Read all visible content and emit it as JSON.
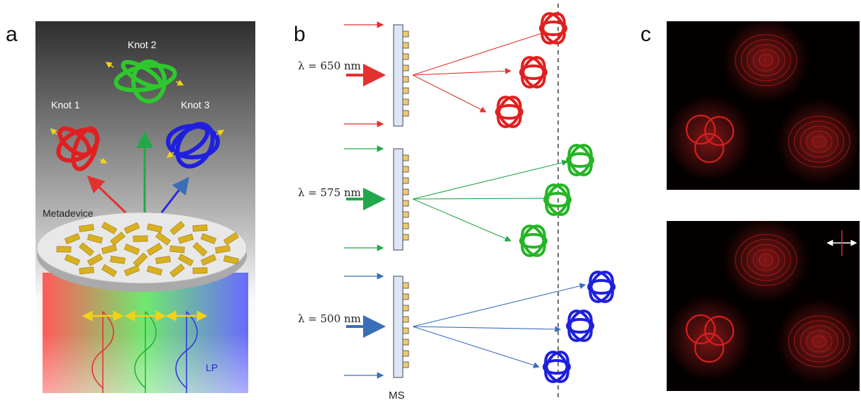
{
  "panels": [
    {
      "label": "a",
      "knots": [
        "Knot 1",
        "Knot 2",
        "Knot 3"
      ],
      "device": "Metadevice",
      "polarization": "LP"
    },
    {
      "label": "b",
      "wavelengths": [
        "λ = 650 nm",
        "λ = 575 nm",
        "λ = 500 nm"
      ],
      "metasurface": "MS"
    },
    {
      "label": "c"
    }
  ]
}
